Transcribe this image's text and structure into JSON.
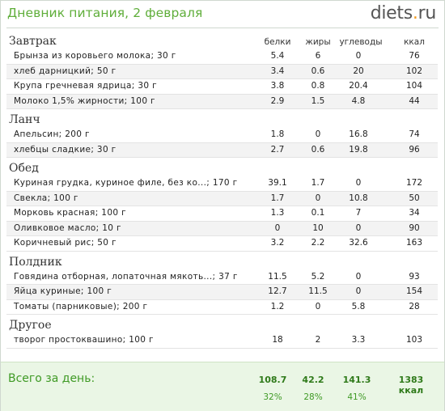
{
  "header": {
    "title": "Дневник питания, 2 февраля",
    "brand_name": "diets",
    "brand_dot": ".",
    "brand_tld": "ru"
  },
  "columns": [
    "белки",
    "жиры",
    "углеводы",
    "ккал"
  ],
  "meals": [
    {
      "title": "Завтрак",
      "items": [
        {
          "name": "Брынза из коровьего молока; 30 г",
          "protein": "5.4",
          "fat": "6",
          "carbs": "0",
          "kcal": "76"
        },
        {
          "name": "хлеб дарницкий; 50 г",
          "protein": "3.4",
          "fat": "0.6",
          "carbs": "20",
          "kcal": "102"
        },
        {
          "name": "Крупа гречневая ядрица; 30 г",
          "protein": "3.8",
          "fat": "0.8",
          "carbs": "20.4",
          "kcal": "104"
        },
        {
          "name": "Молоко 1,5% жирности; 100 г",
          "protein": "2.9",
          "fat": "1.5",
          "carbs": "4.8",
          "kcal": "44"
        }
      ]
    },
    {
      "title": "Ланч",
      "items": [
        {
          "name": "Апельсин; 200 г",
          "protein": "1.8",
          "fat": "0",
          "carbs": "16.8",
          "kcal": "74"
        },
        {
          "name": "хлебцы сладкие; 30 г",
          "protein": "2.7",
          "fat": "0.6",
          "carbs": "19.8",
          "kcal": "96"
        }
      ]
    },
    {
      "title": "Обед",
      "items": [
        {
          "name": "Куриная грудка, куриное филе, без ко...; 170 г",
          "protein": "39.1",
          "fat": "1.7",
          "carbs": "0",
          "kcal": "172"
        },
        {
          "name": "Свекла; 100 г",
          "protein": "1.7",
          "fat": "0",
          "carbs": "10.8",
          "kcal": "50"
        },
        {
          "name": "Морковь красная; 100 г",
          "protein": "1.3",
          "fat": "0.1",
          "carbs": "7",
          "kcal": "34"
        },
        {
          "name": "Оливковое масло; 10 г",
          "protein": "0",
          "fat": "10",
          "carbs": "0",
          "kcal": "90"
        },
        {
          "name": "Коричневый рис; 50 г",
          "protein": "3.2",
          "fat": "2.2",
          "carbs": "32.6",
          "kcal": "163"
        }
      ]
    },
    {
      "title": "Полдник",
      "items": [
        {
          "name": "Говядина отборная, лопаточная мякоть...; 37 г",
          "protein": "11.5",
          "fat": "5.2",
          "carbs": "0",
          "kcal": "93"
        },
        {
          "name": "Яйца куриные; 100 г",
          "protein": "12.7",
          "fat": "11.5",
          "carbs": "0",
          "kcal": "154"
        },
        {
          "name": "Томаты (парниковые); 200 г",
          "protein": "1.2",
          "fat": "0",
          "carbs": "5.8",
          "kcal": "28"
        }
      ]
    },
    {
      "title": "Другое",
      "items": [
        {
          "name": "творог простоквашино; 100 г",
          "protein": "18",
          "fat": "2",
          "carbs": "3.3",
          "kcal": "103"
        }
      ]
    }
  ],
  "totals": {
    "label": "Всего за день:",
    "protein": "108.7",
    "fat": "42.2",
    "carbs": "141.3",
    "kcal": "1383 ккал",
    "protein_pct": "32%",
    "fat_pct": "28%",
    "carbs_pct": "41%"
  },
  "colors": {
    "title_green": "#5fae3a",
    "brand_dot_orange": "#f39a1e",
    "total_bg": "#eaf6e5"
  }
}
